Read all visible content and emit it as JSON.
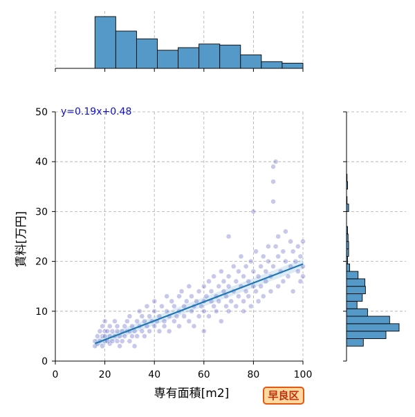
{
  "chart_data": {
    "type": "scatter",
    "xlabel": "専有面積[m2]",
    "ylabel": "賃料[万円]",
    "xlim": [
      0,
      100
    ],
    "ylim": [
      0,
      50
    ],
    "x_ticks": [
      "0",
      "20",
      "40",
      "60",
      "80",
      "100"
    ],
    "y_ticks": [
      "0",
      "10",
      "20",
      "30",
      "40",
      "50"
    ],
    "grid": true,
    "annotation": "y=0.19x+0.48",
    "badge": "早良区",
    "regression": {
      "slope": 0.19,
      "intercept": 0.48,
      "x_range": [
        16,
        100
      ]
    },
    "colors": {
      "points": "#3a3ab8",
      "regression_line": "#1f77b4",
      "hist_fill": "#5599c8"
    },
    "points": [
      [
        16,
        3
      ],
      [
        16,
        4
      ],
      [
        17,
        3.5
      ],
      [
        17,
        5
      ],
      [
        18,
        4
      ],
      [
        18,
        6
      ],
      [
        19,
        3
      ],
      [
        19,
        5
      ],
      [
        19,
        7
      ],
      [
        20,
        4
      ],
      [
        20,
        5
      ],
      [
        20,
        6
      ],
      [
        20,
        8
      ],
      [
        21,
        4
      ],
      [
        21,
        6
      ],
      [
        22,
        3.5
      ],
      [
        22,
        5
      ],
      [
        22,
        7
      ],
      [
        23,
        4
      ],
      [
        23,
        6
      ],
      [
        24,
        5
      ],
      [
        24,
        8
      ],
      [
        25,
        4
      ],
      [
        25,
        6
      ],
      [
        25,
        7
      ],
      [
        26,
        5
      ],
      [
        26,
        3
      ],
      [
        27,
        6
      ],
      [
        27,
        4
      ],
      [
        28,
        5
      ],
      [
        28,
        7
      ],
      [
        29,
        6
      ],
      [
        29,
        8
      ],
      [
        30,
        4
      ],
      [
        30,
        6
      ],
      [
        30,
        9
      ],
      [
        31,
        5
      ],
      [
        31,
        7
      ],
      [
        32,
        6
      ],
      [
        32,
        3
      ],
      [
        33,
        5
      ],
      [
        33,
        8
      ],
      [
        34,
        7
      ],
      [
        34,
        10
      ],
      [
        35,
        6
      ],
      [
        35,
        9
      ],
      [
        36,
        5
      ],
      [
        36,
        8
      ],
      [
        37,
        7
      ],
      [
        37,
        11
      ],
      [
        38,
        6
      ],
      [
        38,
        9
      ],
      [
        39,
        8
      ],
      [
        40,
        7
      ],
      [
        40,
        10
      ],
      [
        40,
        12
      ],
      [
        41,
        8
      ],
      [
        42,
        6
      ],
      [
        42,
        9
      ],
      [
        43,
        11
      ],
      [
        44,
        8
      ],
      [
        44,
        7
      ],
      [
        45,
        10
      ],
      [
        45,
        13
      ],
      [
        46,
        6
      ],
      [
        46,
        9
      ],
      [
        47,
        12
      ],
      [
        48,
        8
      ],
      [
        48,
        11
      ],
      [
        49,
        9
      ],
      [
        50,
        7
      ],
      [
        50,
        10
      ],
      [
        50,
        13
      ],
      [
        51,
        14
      ],
      [
        52,
        9
      ],
      [
        52,
        11
      ],
      [
        53,
        12
      ],
      [
        54,
        8
      ],
      [
        54,
        15
      ],
      [
        55,
        10
      ],
      [
        55,
        13
      ],
      [
        56,
        11
      ],
      [
        56,
        7
      ],
      [
        57,
        12
      ],
      [
        58,
        9
      ],
      [
        58,
        14
      ],
      [
        59,
        11
      ],
      [
        60,
        10
      ],
      [
        60,
        12
      ],
      [
        60,
        15
      ],
      [
        60,
        6
      ],
      [
        61,
        13
      ],
      [
        62,
        9
      ],
      [
        62,
        16
      ],
      [
        63,
        12
      ],
      [
        63,
        14
      ],
      [
        64,
        11
      ],
      [
        64,
        17
      ],
      [
        65,
        13
      ],
      [
        65,
        10
      ],
      [
        66,
        15
      ],
      [
        66,
        12
      ],
      [
        67,
        18
      ],
      [
        67,
        8
      ],
      [
        68,
        14
      ],
      [
        68,
        16
      ],
      [
        69,
        11
      ],
      [
        69,
        13
      ],
      [
        70,
        15
      ],
      [
        70,
        17
      ],
      [
        70,
        10
      ],
      [
        70,
        25
      ],
      [
        71,
        12
      ],
      [
        72,
        14
      ],
      [
        72,
        19
      ],
      [
        73,
        16
      ],
      [
        73,
        11
      ],
      [
        74,
        13
      ],
      [
        74,
        18
      ],
      [
        75,
        15
      ],
      [
        75,
        21
      ],
      [
        76,
        12
      ],
      [
        76,
        17
      ],
      [
        76,
        10
      ],
      [
        77,
        14
      ],
      [
        77,
        19
      ],
      [
        78,
        16
      ],
      [
        78,
        13
      ],
      [
        79,
        20
      ],
      [
        79,
        11
      ],
      [
        80,
        15
      ],
      [
        80,
        18
      ],
      [
        80,
        30
      ],
      [
        81,
        14
      ],
      [
        81,
        22
      ],
      [
        82,
        17
      ],
      [
        82,
        12
      ],
      [
        83,
        19
      ],
      [
        83,
        15
      ],
      [
        84,
        21
      ],
      [
        84,
        13
      ],
      [
        85,
        18
      ],
      [
        85,
        16
      ],
      [
        86,
        20
      ],
      [
        86,
        23
      ],
      [
        87,
        14
      ],
      [
        87,
        17
      ],
      [
        88,
        19
      ],
      [
        88,
        36
      ],
      [
        88,
        32
      ],
      [
        88,
        39
      ],
      [
        89,
        40
      ],
      [
        89,
        23
      ],
      [
        90,
        21
      ],
      [
        90,
        15
      ],
      [
        90,
        25
      ],
      [
        91,
        18
      ],
      [
        92,
        22
      ],
      [
        92,
        16
      ],
      [
        93,
        20
      ],
      [
        93,
        26
      ],
      [
        94,
        17
      ],
      [
        95,
        24
      ],
      [
        95,
        19
      ],
      [
        96,
        14
      ],
      [
        96,
        22
      ],
      [
        97,
        20
      ],
      [
        98,
        23
      ],
      [
        98,
        18
      ],
      [
        99,
        21
      ],
      [
        99,
        16
      ],
      [
        100,
        24
      ],
      [
        100,
        19
      ],
      [
        100,
        17
      ]
    ],
    "hist_x": {
      "bins": [
        16,
        24.4,
        32.8,
        41.2,
        49.6,
        58,
        66.4,
        74.8,
        83.2,
        91.6,
        100
      ],
      "relative_heights": [
        1.0,
        0.72,
        0.57,
        0.35,
        0.4,
        0.47,
        0.45,
        0.26,
        0.13,
        0.1
      ]
    },
    "hist_y": {
      "bins": [
        3,
        4.5,
        6,
        7.5,
        9,
        10.5,
        12,
        13.5,
        15,
        16.5,
        18,
        19.5,
        21,
        22.5,
        24,
        25.5,
        27,
        28.5,
        30,
        31.5,
        33,
        34.5,
        36,
        37.5,
        39,
        40.5
      ],
      "relative_heights": [
        0.32,
        0.75,
        1.0,
        0.82,
        0.4,
        0.2,
        0.3,
        0.36,
        0.35,
        0.22,
        0.06,
        0.02,
        0.04,
        0.04,
        0.03,
        0.02,
        0.0,
        0.0,
        0.04,
        0.01,
        0.0,
        0.02,
        0.01,
        0.0,
        0.0,
        0.02
      ]
    }
  }
}
